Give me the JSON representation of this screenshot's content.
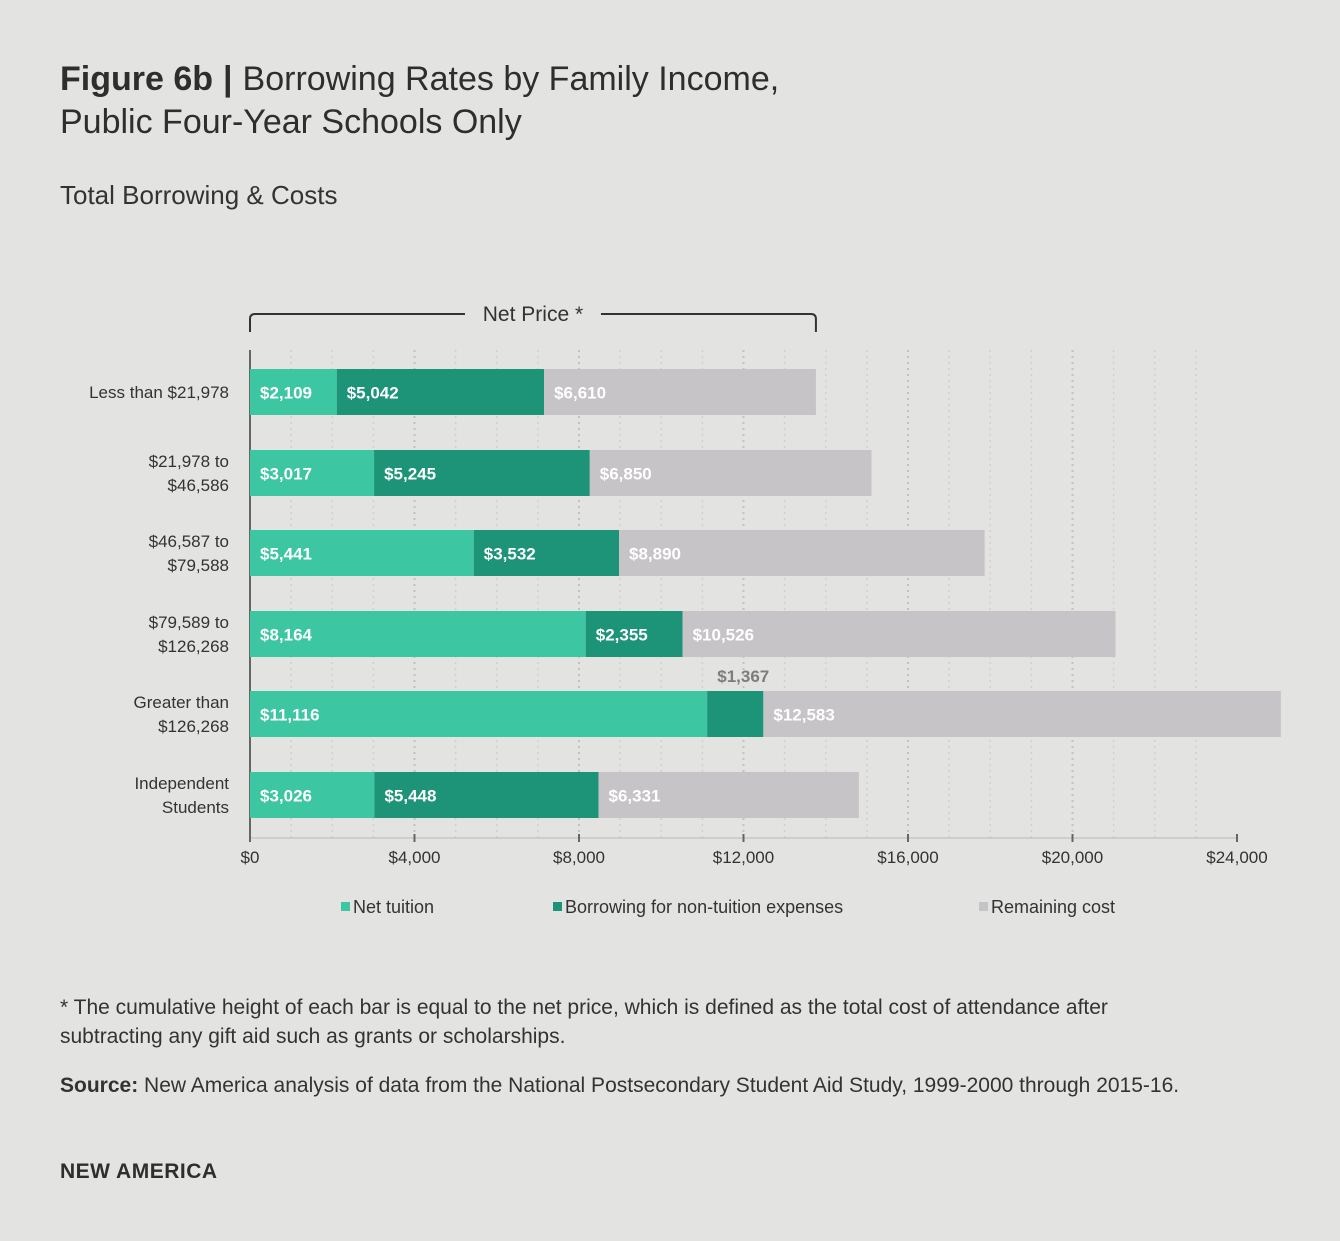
{
  "header": {
    "figure_label": "Figure 6b",
    "separator": "|",
    "title_line1": "Borrowing Rates by Family Income,",
    "title_line2": "Public Four-Year Schools Only",
    "subtitle": "Total Borrowing & Costs"
  },
  "colors": {
    "net_tuition": "#3cc6a2",
    "borrowing": "#1d9378",
    "remaining": "#c6c4c6",
    "background": "#e3e3e1",
    "axis": "#666666"
  },
  "chart_data": {
    "type": "bar",
    "orientation": "horizontal",
    "stacked": true,
    "title": "Total Borrowing & Costs",
    "bracket_label": "Net Price *",
    "categories": [
      "Less than $21,978",
      "$21,978 to $46,586",
      "$46,587 to $79,588",
      "$79,589 to $126,268",
      "Greater than $126,268",
      "Independent Students"
    ],
    "category_lines": [
      [
        "Less than $21,978"
      ],
      [
        "$21,978 to",
        "$46,586"
      ],
      [
        "$46,587 to",
        "$79,588"
      ],
      [
        "$79,589 to",
        "$126,268"
      ],
      [
        "Greater than",
        "$126,268"
      ],
      [
        "Independent",
        "Students"
      ]
    ],
    "series": [
      {
        "name": "Net tuition",
        "values": [
          2109,
          3017,
          5441,
          8164,
          11116,
          3026
        ],
        "labels": [
          "$2,109",
          "$3,017",
          "$5,441",
          "$8,164",
          "$11,116",
          "$3,026"
        ]
      },
      {
        "name": "Borrowing for non-tuition expenses",
        "values": [
          5042,
          5245,
          3532,
          2355,
          1367,
          5448
        ],
        "labels": [
          "$5,042",
          "$5,245",
          "$3,532",
          "$2,355",
          "$1,367",
          "$5,448"
        ]
      },
      {
        "name": "Remaining cost",
        "values": [
          6610,
          6850,
          8890,
          10526,
          12583,
          6331
        ],
        "labels": [
          "$6,610",
          "$6,850",
          "$8,890",
          "$10,526",
          "$12,583",
          "$6,331"
        ]
      }
    ],
    "xlim": [
      0,
      24000
    ],
    "xticks": [
      0,
      4000,
      8000,
      12000,
      16000,
      20000,
      24000
    ],
    "xtick_labels": [
      "$0",
      "$4,000",
      "$8,000",
      "$12,000",
      "$16,000",
      "$20,000",
      "$24,000"
    ],
    "xlabel": "",
    "ylabel": "",
    "grid": true,
    "legend_position": "bottom"
  },
  "footnote": "* The cumulative height of each bar is equal to the net price, which is defined as the total cost of attendance after subtracting any gift aid such as grants or scholarships.",
  "source": {
    "label": "Source:",
    "text": " New America analysis of data from the National Postsecondary Student Aid Study, 1999-2000 through 2015-16."
  },
  "brand": "NEW AMERICA"
}
